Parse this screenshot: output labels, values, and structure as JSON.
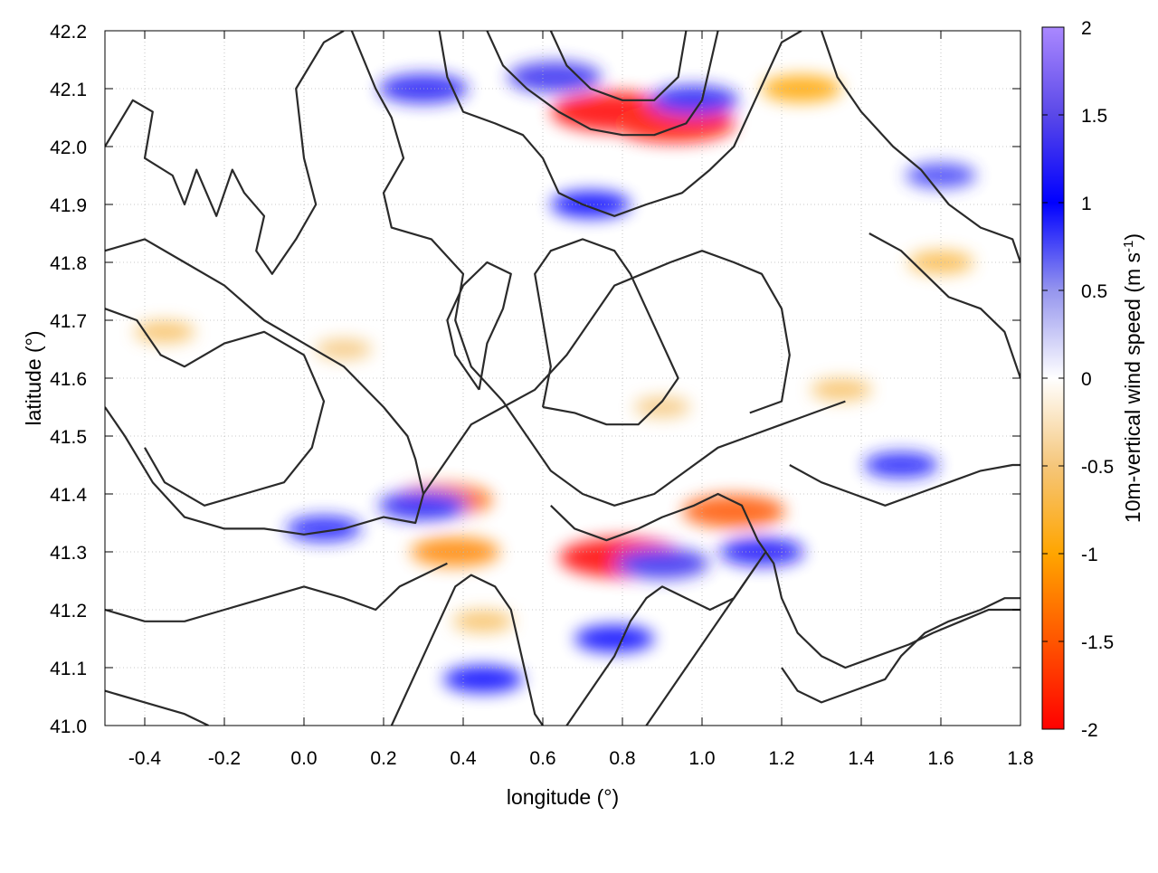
{
  "chart_data": {
    "type": "heatmap",
    "title": "",
    "xlabel": "longitude (°)",
    "ylabel": "latitude (°)",
    "xlim": [
      -0.5,
      1.8
    ],
    "ylim": [
      41.0,
      42.2
    ],
    "xticks": [
      -0.4,
      -0.2,
      0.0,
      0.2,
      0.4,
      0.6,
      0.8,
      1.0,
      1.2,
      1.4,
      1.6,
      1.8
    ],
    "xtick_labels": [
      "-0.4",
      "-0.2",
      "0.0",
      "0.2",
      "0.4",
      "0.6",
      "0.8",
      "1.0",
      "1.2",
      "1.4",
      "1.6",
      "1.8"
    ],
    "yticks": [
      41.0,
      41.1,
      41.2,
      41.3,
      41.4,
      41.5,
      41.6,
      41.7,
      41.8,
      41.9,
      42.0,
      42.1,
      42.2
    ],
    "ytick_labels": [
      "41.0",
      "41.1",
      "41.2",
      "41.3",
      "41.4",
      "41.5",
      "41.6",
      "41.7",
      "41.8",
      "41.9",
      "42.0",
      "42.1",
      "42.2"
    ],
    "grid": true,
    "colorbar": {
      "label_main": "10m-vertical wind speed (m s",
      "label_sup": "-1",
      "label_close": ")",
      "range": [
        -2,
        2
      ],
      "ticks": [
        2,
        1.5,
        1,
        0.5,
        0,
        -0.5,
        -1,
        -1.5,
        -2
      ],
      "tick_labels": [
        "2",
        "1.5",
        "1",
        "0.5",
        "0",
        "-0.5",
        "-1",
        "-1.5",
        "-2"
      ],
      "stops": [
        {
          "value": -2.0,
          "color": "#ff0000"
        },
        {
          "value": -1.5,
          "color": "#ff5500"
        },
        {
          "value": -1.0,
          "color": "#ffa500"
        },
        {
          "value": -0.5,
          "color": "#f5c67a"
        },
        {
          "value": 0.0,
          "color": "#ffffff"
        },
        {
          "value": 0.5,
          "color": "#9595ee"
        },
        {
          "value": 1.0,
          "color": "#0000ff"
        },
        {
          "value": 1.5,
          "color": "#5a48e8"
        },
        {
          "value": 2.0,
          "color": "#aa88ff"
        }
      ]
    },
    "features": [
      {
        "lon": 0.78,
        "lat": 42.06,
        "value": -2.0
      },
      {
        "lon": 0.93,
        "lat": 42.04,
        "value": -1.9
      },
      {
        "lon": 0.8,
        "lat": 41.29,
        "value": -2.0
      },
      {
        "lon": 1.08,
        "lat": 41.37,
        "value": -1.5
      },
      {
        "lon": 0.35,
        "lat": 41.39,
        "value": -1.4
      },
      {
        "lon": 0.38,
        "lat": 41.3,
        "value": -1.2
      },
      {
        "lon": 1.25,
        "lat": 42.1,
        "value": -1.0
      },
      {
        "lon": 0.3,
        "lat": 42.1,
        "value": 1.2
      },
      {
        "lon": 0.63,
        "lat": 42.12,
        "value": 1.3
      },
      {
        "lon": 0.98,
        "lat": 42.08,
        "value": 1.2
      },
      {
        "lon": 0.72,
        "lat": 41.9,
        "value": 1.0
      },
      {
        "lon": 0.9,
        "lat": 41.28,
        "value": 1.3
      },
      {
        "lon": 1.15,
        "lat": 41.3,
        "value": 1.1
      },
      {
        "lon": 0.3,
        "lat": 41.38,
        "value": 1.2
      },
      {
        "lon": 0.05,
        "lat": 41.34,
        "value": 0.9
      },
      {
        "lon": 1.5,
        "lat": 41.45,
        "value": 0.9
      },
      {
        "lon": 1.6,
        "lat": 41.95,
        "value": 0.8
      },
      {
        "lon": 0.45,
        "lat": 41.08,
        "value": 1.0
      },
      {
        "lon": 0.78,
        "lat": 41.15,
        "value": 1.0
      },
      {
        "lon": 1.6,
        "lat": 41.8,
        "value": -0.7
      },
      {
        "lon": -0.35,
        "lat": 41.68,
        "value": -0.6
      },
      {
        "lon": 0.1,
        "lat": 41.65,
        "value": -0.5
      },
      {
        "lon": 0.9,
        "lat": 41.55,
        "value": -0.5
      },
      {
        "lon": 0.45,
        "lat": 41.18,
        "value": -0.6
      },
      {
        "lon": 1.35,
        "lat": 41.58,
        "value": -0.6
      }
    ],
    "contours": [
      [
        [
          -0.5,
          42.0
        ],
        [
          -0.43,
          42.08
        ],
        [
          -0.38,
          42.06
        ],
        [
          -0.4,
          41.98
        ],
        [
          -0.33,
          41.95
        ],
        [
          -0.3,
          41.9
        ],
        [
          -0.27,
          41.96
        ],
        [
          -0.22,
          41.88
        ],
        [
          -0.18,
          41.96
        ],
        [
          -0.15,
          41.92
        ],
        [
          -0.1,
          41.88
        ],
        [
          -0.12,
          41.82
        ],
        [
          -0.08,
          41.78
        ],
        [
          -0.02,
          41.84
        ],
        [
          0.03,
          41.9
        ],
        [
          0.0,
          41.98
        ],
        [
          -0.02,
          42.1
        ],
        [
          0.05,
          42.18
        ],
        [
          0.1,
          42.2
        ]
      ],
      [
        [
          -0.5,
          41.82
        ],
        [
          -0.4,
          41.84
        ],
        [
          -0.3,
          41.8
        ],
        [
          -0.2,
          41.76
        ],
        [
          -0.1,
          41.7
        ],
        [
          0.0,
          41.66
        ],
        [
          0.1,
          41.62
        ],
        [
          0.2,
          41.55
        ],
        [
          0.26,
          41.5
        ],
        [
          0.28,
          41.46
        ],
        [
          0.3,
          41.4
        ],
        [
          0.28,
          41.35
        ],
        [
          0.2,
          41.36
        ],
        [
          0.1,
          41.34
        ],
        [
          0.0,
          41.33
        ],
        [
          -0.1,
          41.34
        ],
        [
          -0.2,
          41.34
        ],
        [
          -0.3,
          41.36
        ],
        [
          -0.38,
          41.42
        ],
        [
          -0.45,
          41.5
        ],
        [
          -0.5,
          41.55
        ]
      ],
      [
        [
          -0.5,
          41.72
        ],
        [
          -0.42,
          41.7
        ],
        [
          -0.36,
          41.64
        ],
        [
          -0.3,
          41.62
        ],
        [
          -0.2,
          41.66
        ],
        [
          -0.1,
          41.68
        ],
        [
          0.0,
          41.64
        ],
        [
          0.05,
          41.56
        ],
        [
          0.02,
          41.48
        ],
        [
          -0.05,
          41.42
        ],
        [
          -0.15,
          41.4
        ],
        [
          -0.25,
          41.38
        ],
        [
          -0.35,
          41.42
        ],
        [
          -0.4,
          41.48
        ]
      ],
      [
        [
          0.12,
          42.2
        ],
        [
          0.18,
          42.1
        ],
        [
          0.22,
          42.05
        ],
        [
          0.25,
          41.98
        ],
        [
          0.2,
          41.92
        ],
        [
          0.22,
          41.86
        ],
        [
          0.32,
          41.84
        ],
        [
          0.4,
          41.78
        ],
        [
          0.38,
          41.7
        ],
        [
          0.42,
          41.62
        ],
        [
          0.5,
          41.56
        ],
        [
          0.56,
          41.5
        ],
        [
          0.62,
          41.44
        ],
        [
          0.7,
          41.4
        ],
        [
          0.78,
          41.38
        ],
        [
          0.88,
          41.4
        ],
        [
          0.96,
          41.44
        ],
        [
          1.04,
          41.48
        ],
        [
          1.12,
          41.5
        ],
        [
          1.2,
          41.52
        ],
        [
          1.28,
          41.54
        ],
        [
          1.36,
          41.56
        ]
      ],
      [
        [
          0.3,
          41.4
        ],
        [
          0.36,
          41.46
        ],
        [
          0.42,
          41.52
        ],
        [
          0.5,
          41.55
        ],
        [
          0.58,
          41.58
        ],
        [
          0.66,
          41.64
        ],
        [
          0.72,
          41.7
        ],
        [
          0.78,
          41.76
        ],
        [
          0.85,
          41.78
        ],
        [
          0.92,
          41.8
        ],
        [
          1.0,
          41.82
        ],
        [
          1.08,
          41.8
        ],
        [
          1.15,
          41.78
        ],
        [
          1.2,
          41.72
        ],
        [
          1.22,
          41.64
        ],
        [
          1.2,
          41.56
        ],
        [
          1.12,
          41.54
        ]
      ],
      [
        [
          0.34,
          42.2
        ],
        [
          0.36,
          42.12
        ],
        [
          0.4,
          42.06
        ],
        [
          0.48,
          42.04
        ],
        [
          0.55,
          42.02
        ],
        [
          0.6,
          41.98
        ],
        [
          0.64,
          41.92
        ],
        [
          0.7,
          41.9
        ],
        [
          0.78,
          41.88
        ],
        [
          0.86,
          41.9
        ],
        [
          0.95,
          41.92
        ],
        [
          1.02,
          41.96
        ],
        [
          1.08,
          42.0
        ],
        [
          1.12,
          42.06
        ],
        [
          1.16,
          42.12
        ],
        [
          1.2,
          42.18
        ],
        [
          1.25,
          42.2
        ]
      ],
      [
        [
          0.46,
          42.2
        ],
        [
          0.5,
          42.14
        ],
        [
          0.56,
          42.1
        ],
        [
          0.64,
          42.06
        ],
        [
          0.72,
          42.03
        ],
        [
          0.8,
          42.02
        ],
        [
          0.88,
          42.02
        ],
        [
          0.96,
          42.04
        ],
        [
          1.0,
          42.08
        ],
        [
          1.02,
          42.14
        ],
        [
          1.04,
          42.2
        ]
      ],
      [
        [
          0.62,
          42.2
        ],
        [
          0.66,
          42.14
        ],
        [
          0.72,
          42.1
        ],
        [
          0.8,
          42.08
        ],
        [
          0.88,
          42.08
        ],
        [
          0.94,
          42.12
        ],
        [
          0.96,
          42.2
        ]
      ],
      [
        [
          1.3,
          42.2
        ],
        [
          1.34,
          42.12
        ],
        [
          1.4,
          42.06
        ],
        [
          1.48,
          42.0
        ],
        [
          1.55,
          41.96
        ],
        [
          1.62,
          41.9
        ],
        [
          1.7,
          41.86
        ],
        [
          1.78,
          41.84
        ],
        [
          1.8,
          41.8
        ]
      ],
      [
        [
          1.42,
          41.85
        ],
        [
          1.5,
          41.82
        ],
        [
          1.56,
          41.78
        ],
        [
          1.62,
          41.74
        ],
        [
          1.7,
          41.72
        ],
        [
          1.76,
          41.68
        ],
        [
          1.8,
          41.6
        ]
      ],
      [
        [
          1.22,
          41.45
        ],
        [
          1.3,
          41.42
        ],
        [
          1.38,
          41.4
        ],
        [
          1.46,
          41.38
        ],
        [
          1.54,
          41.4
        ],
        [
          1.62,
          41.42
        ],
        [
          1.7,
          41.44
        ],
        [
          1.78,
          41.45
        ],
        [
          1.8,
          41.45
        ]
      ],
      [
        [
          0.62,
          41.38
        ],
        [
          0.68,
          41.34
        ],
        [
          0.76,
          41.32
        ],
        [
          0.84,
          41.34
        ],
        [
          0.9,
          41.36
        ],
        [
          0.98,
          41.38
        ],
        [
          1.04,
          41.4
        ],
        [
          1.1,
          41.38
        ],
        [
          1.14,
          41.32
        ],
        [
          1.18,
          41.28
        ],
        [
          1.2,
          41.22
        ],
        [
          1.24,
          41.16
        ],
        [
          1.3,
          41.12
        ],
        [
          1.36,
          41.1
        ],
        [
          1.44,
          41.12
        ],
        [
          1.52,
          41.14
        ],
        [
          1.58,
          41.16
        ],
        [
          1.65,
          41.18
        ],
        [
          1.72,
          41.2
        ],
        [
          1.78,
          41.2
        ],
        [
          1.8,
          41.2
        ]
      ],
      [
        [
          1.2,
          41.1
        ],
        [
          1.24,
          41.06
        ],
        [
          1.3,
          41.04
        ],
        [
          1.38,
          41.06
        ],
        [
          1.46,
          41.08
        ],
        [
          1.5,
          41.12
        ],
        [
          1.56,
          41.16
        ],
        [
          1.62,
          41.18
        ],
        [
          1.7,
          41.2
        ],
        [
          1.76,
          41.22
        ],
        [
          1.8,
          41.22
        ]
      ],
      [
        [
          0.22,
          41.0
        ],
        [
          0.26,
          41.06
        ],
        [
          0.3,
          41.12
        ],
        [
          0.34,
          41.18
        ],
        [
          0.38,
          41.24
        ],
        [
          0.42,
          41.26
        ],
        [
          0.48,
          41.24
        ],
        [
          0.52,
          41.2
        ],
        [
          0.54,
          41.14
        ],
        [
          0.56,
          41.08
        ],
        [
          0.58,
          41.02
        ],
        [
          0.6,
          41.0
        ]
      ],
      [
        [
          0.66,
          41.0
        ],
        [
          0.7,
          41.04
        ],
        [
          0.74,
          41.08
        ],
        [
          0.78,
          41.12
        ],
        [
          0.82,
          41.18
        ],
        [
          0.86,
          41.22
        ],
        [
          0.9,
          41.24
        ],
        [
          0.96,
          41.22
        ],
        [
          1.02,
          41.2
        ],
        [
          1.08,
          41.22
        ],
        [
          1.12,
          41.26
        ],
        [
          1.16,
          41.3
        ]
      ],
      [
        [
          0.86,
          41.0
        ],
        [
          0.9,
          41.04
        ],
        [
          0.94,
          41.08
        ],
        [
          0.98,
          41.12
        ],
        [
          1.02,
          41.16
        ],
        [
          1.06,
          41.2
        ],
        [
          1.1,
          41.24
        ],
        [
          1.14,
          41.28
        ]
      ],
      [
        [
          -0.5,
          41.2
        ],
        [
          -0.4,
          41.18
        ],
        [
          -0.3,
          41.18
        ],
        [
          -0.2,
          41.2
        ],
        [
          -0.1,
          41.22
        ],
        [
          0.0,
          41.24
        ],
        [
          0.1,
          41.22
        ],
        [
          0.18,
          41.2
        ],
        [
          0.24,
          41.24
        ],
        [
          0.3,
          41.26
        ],
        [
          0.36,
          41.28
        ]
      ],
      [
        [
          -0.5,
          41.06
        ],
        [
          -0.4,
          41.04
        ],
        [
          -0.3,
          41.02
        ],
        [
          -0.24,
          41.0
        ]
      ],
      [
        [
          0.6,
          41.55
        ],
        [
          0.62,
          41.62
        ],
        [
          0.6,
          41.7
        ],
        [
          0.58,
          41.78
        ],
        [
          0.62,
          41.82
        ],
        [
          0.7,
          41.84
        ],
        [
          0.78,
          41.82
        ],
        [
          0.82,
          41.78
        ],
        [
          0.86,
          41.72
        ],
        [
          0.9,
          41.66
        ],
        [
          0.94,
          41.6
        ],
        [
          0.9,
          41.56
        ],
        [
          0.84,
          41.52
        ],
        [
          0.76,
          41.52
        ],
        [
          0.68,
          41.54
        ],
        [
          0.6,
          41.55
        ]
      ],
      [
        [
          0.44,
          41.58
        ],
        [
          0.46,
          41.66
        ],
        [
          0.5,
          41.72
        ],
        [
          0.52,
          41.78
        ],
        [
          0.46,
          41.8
        ],
        [
          0.4,
          41.76
        ],
        [
          0.36,
          41.7
        ],
        [
          0.38,
          41.64
        ],
        [
          0.44,
          41.58
        ]
      ]
    ]
  }
}
